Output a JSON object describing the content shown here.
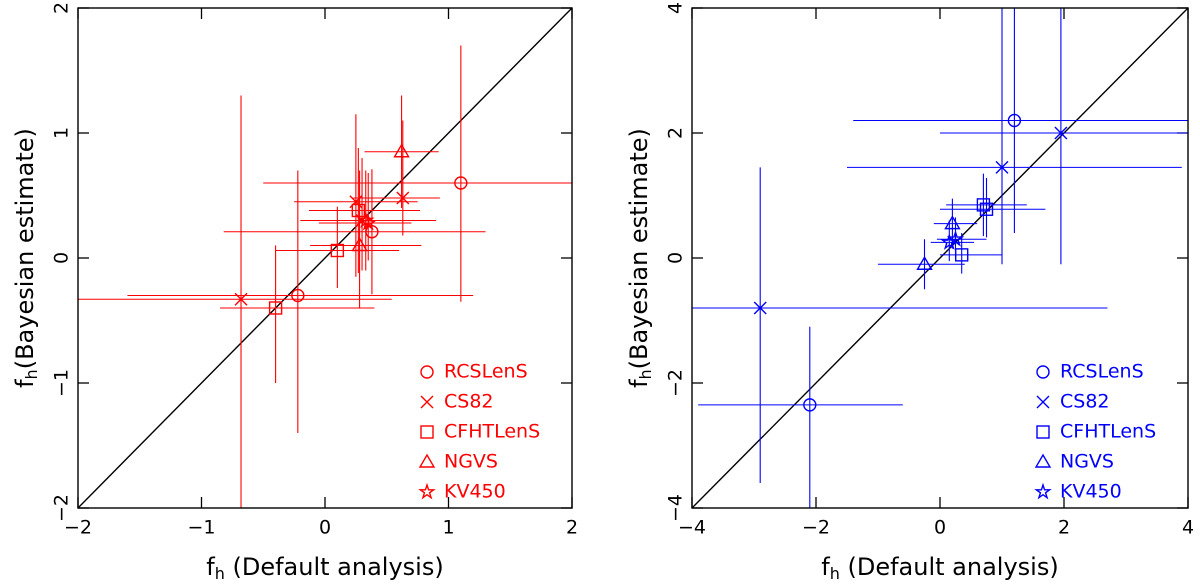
{
  "chart_data": [
    {
      "type": "scatter",
      "color": "#ff0000",
      "x_label": {
        "main": "f",
        "sub": "h",
        "rest": " (Default analysis)"
      },
      "y_label": {
        "main": "f",
        "sub": "h",
        "rest": "(Bayesian estimate)"
      },
      "xlim": [
        -2,
        2
      ],
      "ylim": [
        -2,
        2
      ],
      "xticks": [
        {
          "value": -2,
          "label": "−2"
        },
        {
          "value": -1,
          "label": "−1"
        },
        0,
        1,
        2
      ],
      "yticks": [
        {
          "value": -2,
          "label": "−2"
        },
        {
          "value": -1,
          "label": "−1"
        },
        0,
        1,
        2
      ],
      "diagonal": true,
      "legend": "lower right",
      "series": [
        {
          "name": "RCSLenS",
          "marker": "circle",
          "x": [
            1.1,
            -0.22,
            0.38
          ],
          "y": [
            0.6,
            -0.3,
            0.21
          ],
          "xerr_minus": [
            1.6,
            1.38,
            1.2
          ],
          "xerr_plus": [
            0.9,
            1.42,
            0.92
          ],
          "yerr_minus": [
            0.95,
            1.1,
            0.5
          ],
          "yerr_plus": [
            1.1,
            1.0,
            0.5
          ]
        },
        {
          "name": "CS82",
          "marker": "x",
          "x": [
            -0.68,
            0.25,
            0.63,
            0.3
          ],
          "y": [
            -0.33,
            0.45,
            0.48,
            0.3
          ],
          "xerr_minus": [
            1.32,
            0.5,
            0.4,
            0.5
          ],
          "xerr_plus": [
            1.22,
            0.5,
            0.3,
            0.6
          ],
          "yerr_minus": [
            1.67,
            0.6,
            0.3,
            0.4
          ],
          "yerr_plus": [
            1.63,
            0.7,
            0.62,
            0.5
          ]
        },
        {
          "name": "CFHTLenS",
          "marker": "square",
          "x": [
            -0.4,
            0.1,
            0.27
          ],
          "y": [
            -0.4,
            0.06,
            0.38
          ],
          "xerr_minus": [
            0.45,
            0.5,
            0.4
          ],
          "xerr_plus": [
            0.8,
            0.5,
            0.5
          ],
          "yerr_minus": [
            0.6,
            0.3,
            0.5
          ],
          "yerr_plus": [
            0.5,
            0.35,
            0.5
          ]
        },
        {
          "name": "NGVS",
          "marker": "triangle",
          "x": [
            0.62,
            0.28
          ],
          "y": [
            0.85,
            0.1
          ],
          "xerr_minus": [
            0.3,
            0.4
          ],
          "xerr_plus": [
            0.3,
            0.5
          ],
          "yerr_minus": [
            0.45,
            0.5
          ],
          "yerr_plus": [
            0.45,
            0.6
          ]
        },
        {
          "name": "KV450",
          "marker": "star",
          "x": [
            0.33,
            0.35
          ],
          "y": [
            0.3,
            0.28
          ],
          "xerr_minus": [
            0.3,
            0.4
          ],
          "xerr_plus": [
            0.3,
            0.35
          ],
          "yerr_minus": [
            0.4,
            0.3
          ],
          "yerr_plus": [
            0.4,
            0.4
          ]
        }
      ]
    },
    {
      "type": "scatter",
      "color": "#0000ff",
      "x_label": {
        "main": "f",
        "sub": "h",
        "rest": " (Default analysis)"
      },
      "y_label": {
        "main": "f",
        "sub": "h",
        "rest": "(Bayesian estimate)"
      },
      "xlim": [
        -4,
        4
      ],
      "ylim": [
        -4,
        4
      ],
      "xticks": [
        {
          "value": -4,
          "label": "−4"
        },
        {
          "value": -2,
          "label": "−2"
        },
        0,
        2,
        4
      ],
      "yticks": [
        {
          "value": -4,
          "label": "−4"
        },
        {
          "value": -2,
          "label": "−2"
        },
        0,
        2,
        4
      ],
      "diagonal": true,
      "legend": "lower right",
      "series": [
        {
          "name": "RCSLenS",
          "marker": "circle",
          "x": [
            1.2,
            -2.1
          ],
          "y": [
            2.2,
            -2.35
          ],
          "xerr_minus": [
            2.6,
            1.8
          ],
          "xerr_plus": [
            2.8,
            1.5
          ],
          "yerr_minus": [
            1.8,
            1.65
          ],
          "yerr_plus": [
            1.8,
            1.25
          ]
        },
        {
          "name": "CS82",
          "marker": "x",
          "x": [
            -2.9,
            1.95,
            1.0
          ],
          "y": [
            -0.8,
            2.0,
            1.45
          ],
          "xerr_minus": [
            1.1,
            1.95,
            2.5
          ],
          "xerr_plus": [
            5.6,
            2.05,
            2.9
          ],
          "yerr_minus": [
            2.8,
            2.1,
            1.55
          ],
          "yerr_plus": [
            2.25,
            2.0,
            2.55
          ]
        },
        {
          "name": "CFHTLenS",
          "marker": "square",
          "x": [
            0.75,
            0.7,
            0.35
          ],
          "y": [
            0.78,
            0.85,
            0.05
          ],
          "xerr_minus": [
            0.75,
            0.6,
            0.35
          ],
          "xerr_plus": [
            0.95,
            0.7,
            0.65
          ],
          "yerr_minus": [
            0.45,
            0.5,
            0.3
          ],
          "yerr_plus": [
            0.5,
            0.5,
            0.35
          ]
        },
        {
          "name": "NGVS",
          "marker": "triangle",
          "x": [
            -0.25,
            0.2
          ],
          "y": [
            -0.1,
            0.55
          ],
          "xerr_minus": [
            0.75,
            0.3
          ],
          "xerr_plus": [
            0.65,
            0.4
          ],
          "yerr_minus": [
            0.4,
            0.4
          ],
          "yerr_plus": [
            0.4,
            0.4
          ]
        },
        {
          "name": "KV450",
          "marker": "star",
          "x": [
            0.15,
            0.25
          ],
          "y": [
            0.25,
            0.3
          ],
          "xerr_minus": [
            0.3,
            0.3
          ],
          "xerr_plus": [
            0.4,
            0.5
          ],
          "yerr_minus": [
            0.3,
            0.3
          ],
          "yerr_plus": [
            0.35,
            0.35
          ]
        }
      ]
    }
  ]
}
